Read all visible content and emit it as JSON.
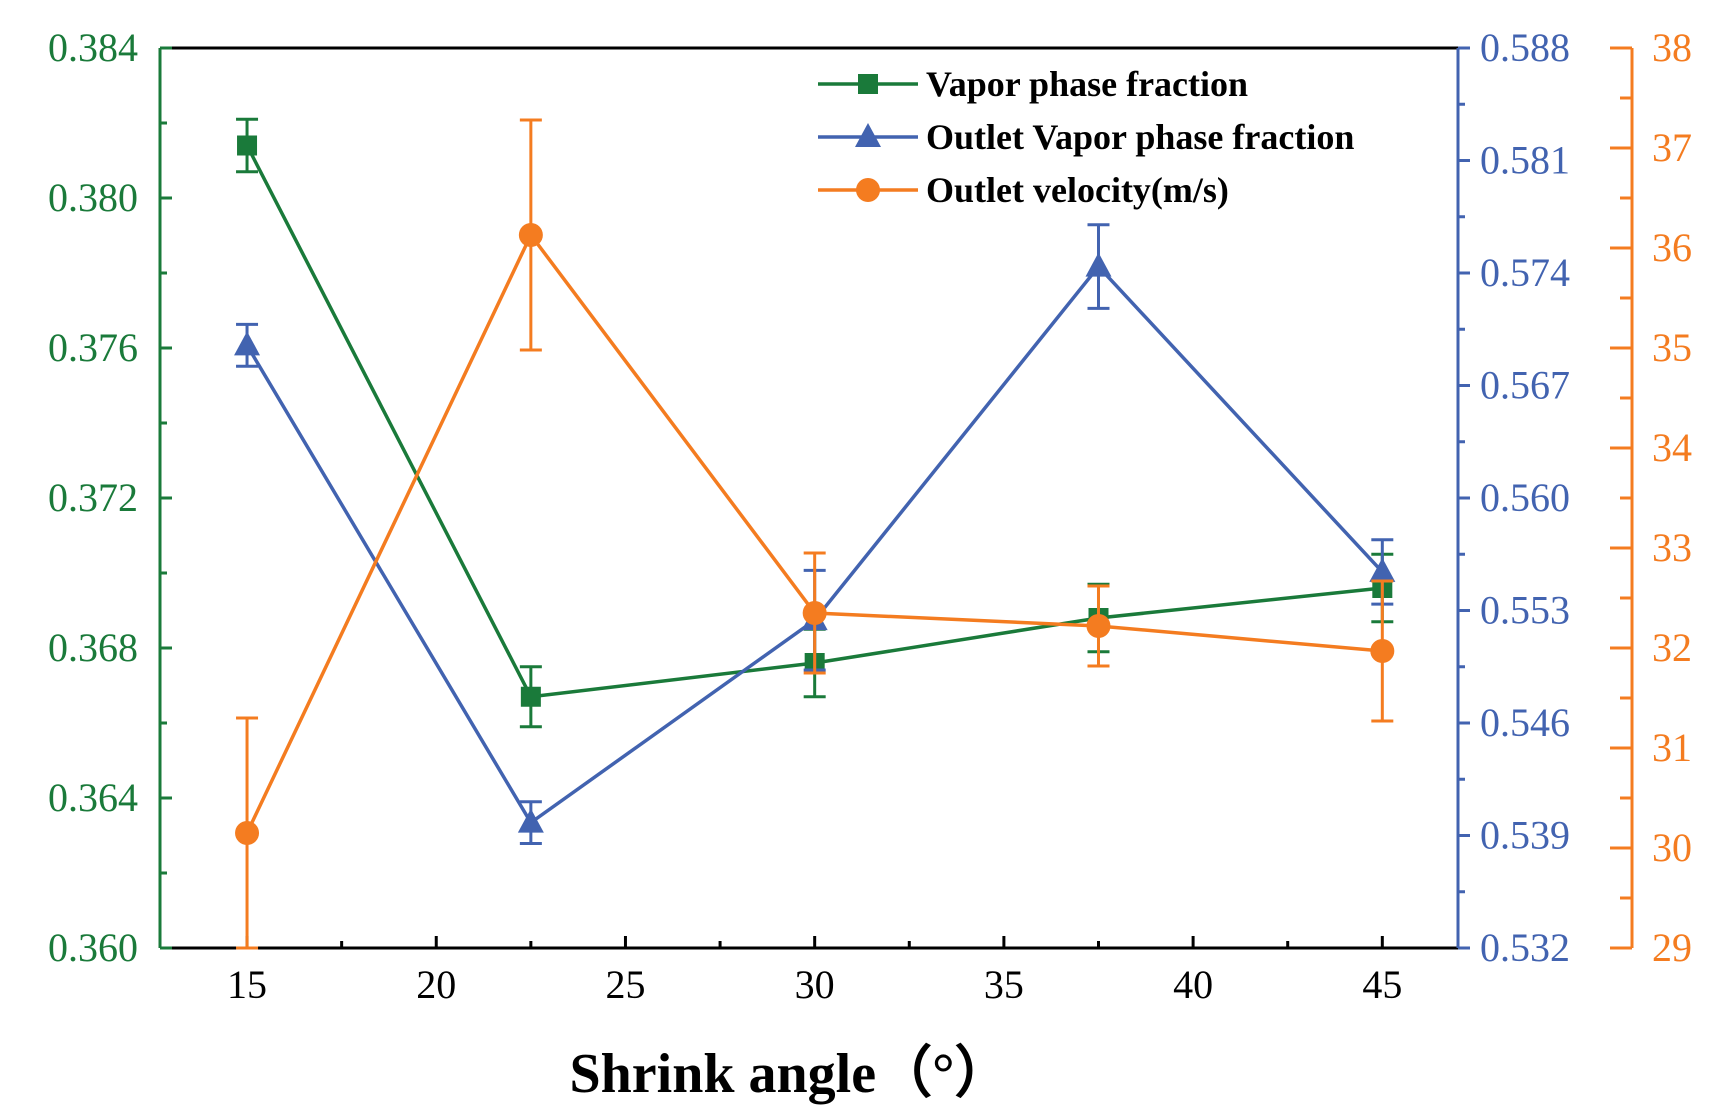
{
  "chart_data": {
    "type": "line",
    "xlabel": "Shrink angle（°）",
    "x_ticks": [
      "15",
      "20",
      "25",
      "30",
      "35",
      "40",
      "45"
    ],
    "xlim": [
      12.7,
      47
    ],
    "x": [
      15,
      22.5,
      30,
      37.5,
      45
    ],
    "axes": {
      "left": {
        "range": [
          0.36,
          0.384
        ],
        "ticks": [
          "0.360",
          "0.364",
          "0.368",
          "0.372",
          "0.376",
          "0.380",
          "0.384"
        ],
        "color": "#1a7a3a"
      },
      "right1": {
        "range": [
          0.532,
          0.588
        ],
        "ticks": [
          "0.532",
          "0.539",
          "0.546",
          "0.553",
          "0.560",
          "0.567",
          "0.574",
          "0.581",
          "0.588"
        ],
        "color": "#4263b0"
      },
      "right2": {
        "range": [
          29,
          38
        ],
        "ticks": [
          "29",
          "30",
          "31",
          "32",
          "33",
          "34",
          "35",
          "36",
          "37",
          "38"
        ],
        "color": "#f47c20"
      }
    },
    "series": [
      {
        "name": "Vapor phase fraction",
        "axis": "left",
        "marker": "square",
        "color": "#1a7a3a",
        "values": [
          0.3814,
          0.3667,
          0.3676,
          0.3688,
          0.3696
        ],
        "errors": [
          0.0007,
          0.0008,
          0.0009,
          0.0009,
          0.0009
        ]
      },
      {
        "name": "Outlet Vapor phase fraction",
        "axis": "right1",
        "marker": "triangle",
        "color": "#4263b0",
        "values": [
          0.5695,
          0.5398,
          0.5524,
          0.5744,
          0.5554
        ],
        "errors": [
          0.0013,
          0.0013,
          0.0031,
          0.0026,
          0.002
        ]
      },
      {
        "name": "Outlet velocity(m/s)",
        "axis": "right2",
        "marker": "circle",
        "color": "#f47c20",
        "values": [
          30.15,
          36.13,
          32.35,
          32.22,
          31.97
        ],
        "errors": [
          1.15,
          1.15,
          0.6,
          0.4,
          0.7
        ]
      }
    ]
  }
}
